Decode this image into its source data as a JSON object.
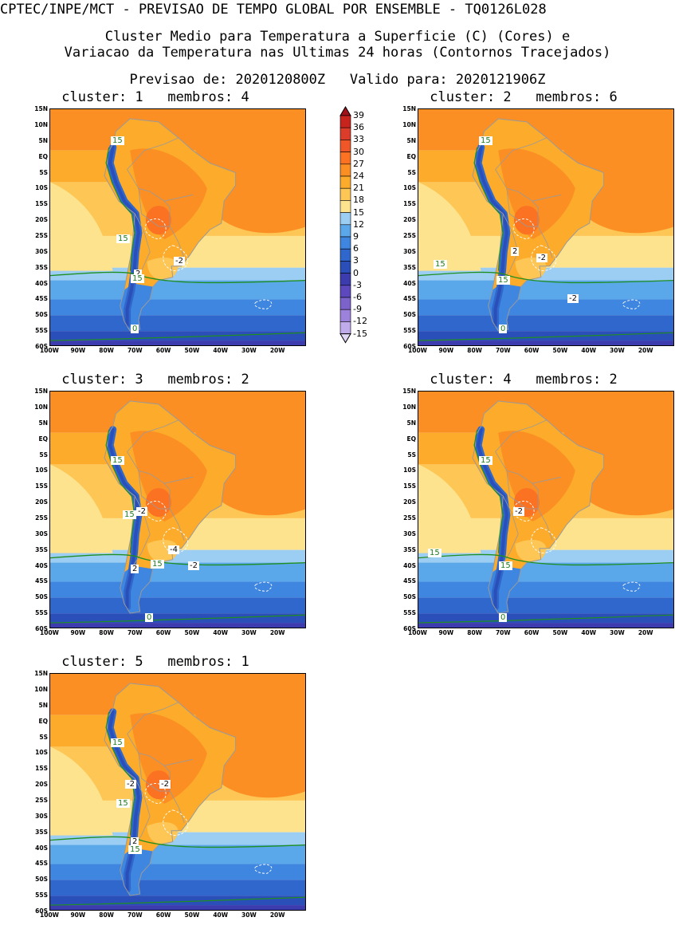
{
  "header": {
    "line1": "CPTEC/INPE/MCT - PREVISAO DE TEMPO GLOBAL POR ENSEMBLE - TQ0126L028",
    "line2": "Cluster Medio para Temperatura a Superficie (C) (Cores) e",
    "line3": "Variacao da Temperatura nas Ultimas 24 horas (Contornos Tracejados)",
    "line4": "Previsao de: 2020120800Z   Valido para: 2020121906Z"
  },
  "lat_labels": [
    "15N",
    "10N",
    "5N",
    "EQ",
    "5S",
    "10S",
    "15S",
    "20S",
    "25S",
    "30S",
    "35S",
    "40S",
    "45S",
    "50S",
    "55S",
    "60S"
  ],
  "lon_labels": [
    "100W",
    "90W",
    "80W",
    "70W",
    "60W",
    "50W",
    "40W",
    "30W",
    "20W"
  ],
  "colorbar": {
    "levels": [
      "39",
      "36",
      "33",
      "30",
      "27",
      "24",
      "21",
      "18",
      "15",
      "12",
      "9",
      "6",
      "3",
      "0",
      "-3",
      "-6",
      "-9",
      "-12",
      "-15"
    ],
    "colors": [
      "#a0111a",
      "#c8241e",
      "#dc3c2a",
      "#ef5728",
      "#fa7222",
      "#fc8f23",
      "#fdab2a",
      "#fdc655",
      "#fde38e",
      "#9ccdf3",
      "#5aa7ea",
      "#3f86e0",
      "#2f67cc",
      "#2a4fb8",
      "#3c3cae",
      "#5d48bd",
      "#7c63cc",
      "#9c82db",
      "#c0acea",
      "#e0d6f5"
    ]
  },
  "panels": [
    {
      "title": "cluster: 1   membros: 4",
      "labels": [
        {
          "t": "15",
          "c": "g"
        },
        {
          "t": "15",
          "c": "g"
        },
        {
          "t": "2",
          "c": "k"
        },
        {
          "t": "-2",
          "c": "k"
        },
        {
          "t": "15",
          "c": "g"
        },
        {
          "t": "0",
          "c": "g"
        }
      ]
    },
    {
      "title": "cluster: 2   membros: 6",
      "labels": [
        {
          "t": "15",
          "c": "g"
        },
        {
          "t": "15",
          "c": "g"
        },
        {
          "t": "2",
          "c": "k"
        },
        {
          "t": "-2",
          "c": "k"
        },
        {
          "t": "15",
          "c": "g"
        },
        {
          "t": "-2",
          "c": "k"
        },
        {
          "t": "0",
          "c": "g"
        }
      ]
    },
    {
      "title": "cluster: 3   membros: 2",
      "labels": [
        {
          "t": "15",
          "c": "g"
        },
        {
          "t": "15",
          "c": "g"
        },
        {
          "t": "-2",
          "c": "k"
        },
        {
          "t": "-4",
          "c": "k"
        },
        {
          "t": "2",
          "c": "k"
        },
        {
          "t": "-2",
          "c": "k"
        },
        {
          "t": "15",
          "c": "g"
        },
        {
          "t": "0",
          "c": "g"
        }
      ]
    },
    {
      "title": "cluster: 4   membros: 2",
      "labels": [
        {
          "t": "15",
          "c": "g"
        },
        {
          "t": "-2",
          "c": "k"
        },
        {
          "t": "15",
          "c": "g"
        },
        {
          "t": "15",
          "c": "g"
        },
        {
          "t": "0",
          "c": "g"
        }
      ]
    },
    {
      "title": "cluster: 5   membros: 1",
      "labels": [
        {
          "t": "15",
          "c": "g"
        },
        {
          "t": "-2",
          "c": "k"
        },
        {
          "t": "-2",
          "c": "k"
        },
        {
          "t": "15",
          "c": "g"
        },
        {
          "t": "2",
          "c": "k"
        },
        {
          "t": "15",
          "c": "g"
        }
      ]
    }
  ]
}
